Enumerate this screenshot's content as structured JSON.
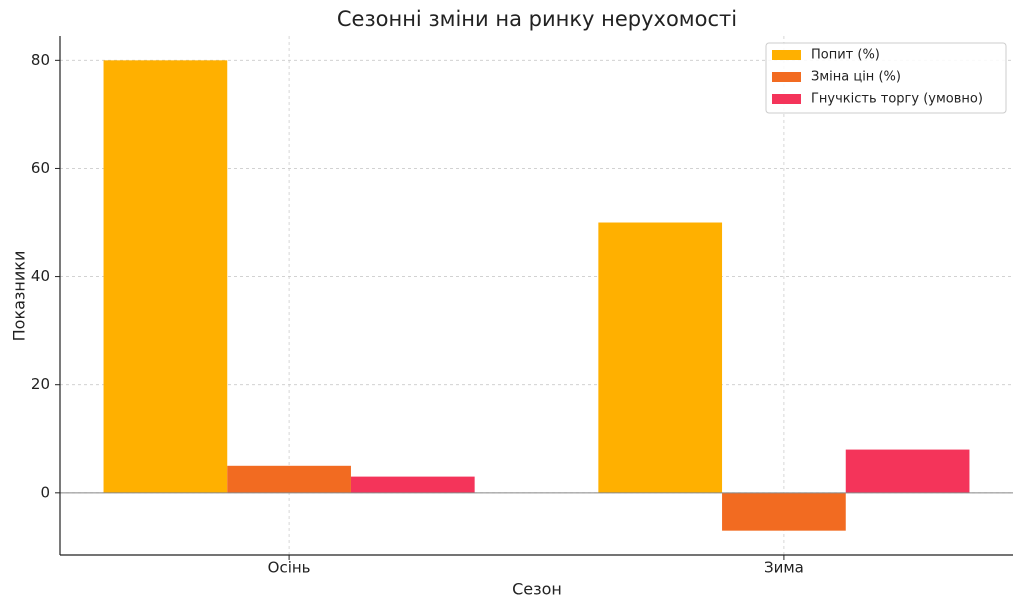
{
  "chart_data": {
    "type": "bar",
    "title": "Сезонні зміни на ринку нерухомості",
    "x_label": "Сезон",
    "y_label": "Показники",
    "categories": [
      "Осінь",
      "Зима"
    ],
    "series": [
      {
        "name": "Попит (%)",
        "color": "#ffb000",
        "values": [
          80,
          50
        ]
      },
      {
        "name": "Зміна цін (%)",
        "color": "#f26b21",
        "values": [
          5,
          -7
        ]
      },
      {
        "name": "Гнучкість торгу (умовно)",
        "color": "#f4345a",
        "values": [
          3,
          8
        ]
      }
    ],
    "ylim": [
      -11.5,
      84.5
    ],
    "yticks": [
      0,
      20,
      40,
      60,
      80
    ],
    "grid": true,
    "legend": "upper right"
  }
}
